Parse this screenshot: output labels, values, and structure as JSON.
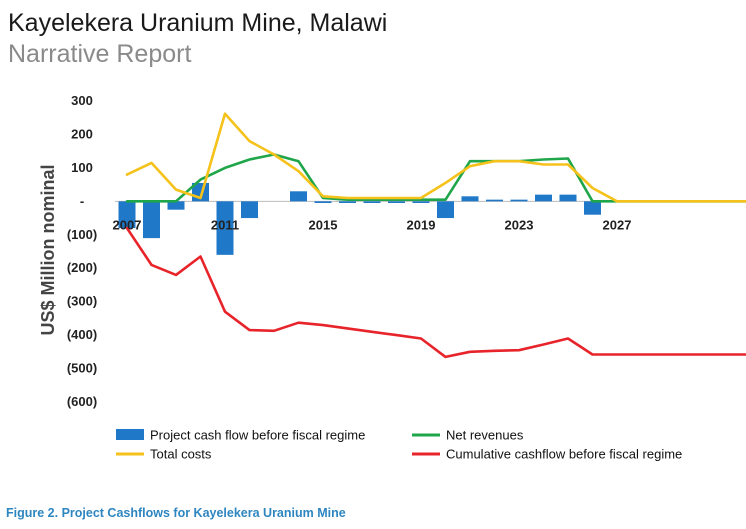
{
  "header": {
    "title": "Kayelekera Uranium Mine, Malawi",
    "subtitle": "Narrative Report"
  },
  "caption": "Figure 2. Project Cashflows for Kayelekera Uranium Mine",
  "colors": {
    "bars": "#1f78c8",
    "net_revenues": "#1fa64a",
    "total_costs": "#f5c21b",
    "cumulative": "#e8242b"
  },
  "chart_data": {
    "type": "bar",
    "ylabel": "US$ Million nominal",
    "ylim": [
      -600,
      300
    ],
    "yticks": [
      300,
      200,
      100,
      0,
      -100,
      -200,
      -300,
      -400,
      -500,
      -600
    ],
    "ytick_labels": [
      "300",
      "200",
      "100",
      "-",
      "(100)",
      "(200)",
      "(300)",
      "(400)",
      "(500)",
      "(600)"
    ],
    "x": [
      2007,
      2008,
      2009,
      2010,
      2011,
      2012,
      2013,
      2014,
      2015,
      2016,
      2017,
      2018,
      2019,
      2020,
      2021,
      2022,
      2023,
      2024,
      2025,
      2026,
      2027,
      2028,
      2029,
      2030,
      2031,
      2032,
      2033
    ],
    "xtick_labels": [
      "2007",
      "2011",
      "2015",
      "2019",
      "2023",
      "2027"
    ],
    "xtick_values": [
      2007,
      2011,
      2015,
      2019,
      2023,
      2027
    ],
    "legend_position": "bottom",
    "series": [
      {
        "name": "Project cash flow before fiscal regime",
        "type": "bar",
        "values": [
          -80,
          -110,
          -25,
          55,
          -160,
          -50,
          0,
          30,
          -5,
          -5,
          -5,
          -5,
          -5,
          -50,
          15,
          5,
          5,
          20,
          20,
          -40,
          0,
          0,
          0,
          0,
          0,
          0,
          0
        ]
      },
      {
        "name": "Net revenues",
        "type": "line",
        "values": [
          0,
          0,
          0,
          65,
          100,
          125,
          140,
          120,
          10,
          5,
          5,
          5,
          5,
          5,
          120,
          120,
          120,
          125,
          128,
          0,
          0,
          0,
          0,
          0,
          0,
          0,
          0
        ]
      },
      {
        "name": "Total costs",
        "type": "line",
        "values": [
          80,
          115,
          35,
          10,
          262,
          180,
          140,
          90,
          15,
          10,
          10,
          10,
          10,
          55,
          105,
          120,
          120,
          110,
          110,
          40,
          0,
          0,
          0,
          0,
          0,
          0,
          0
        ]
      },
      {
        "name": "Cumulative cashflow before fiscal regime",
        "type": "line",
        "values": [
          -80,
          -190,
          -220,
          -165,
          -330,
          -385,
          -387,
          -363,
          -370,
          -380,
          -390,
          -400,
          -410,
          -465,
          -450,
          -447,
          -445,
          -428,
          -410,
          -458,
          -458,
          -458,
          -458,
          -458,
          -458,
          -458,
          -458
        ]
      }
    ]
  }
}
